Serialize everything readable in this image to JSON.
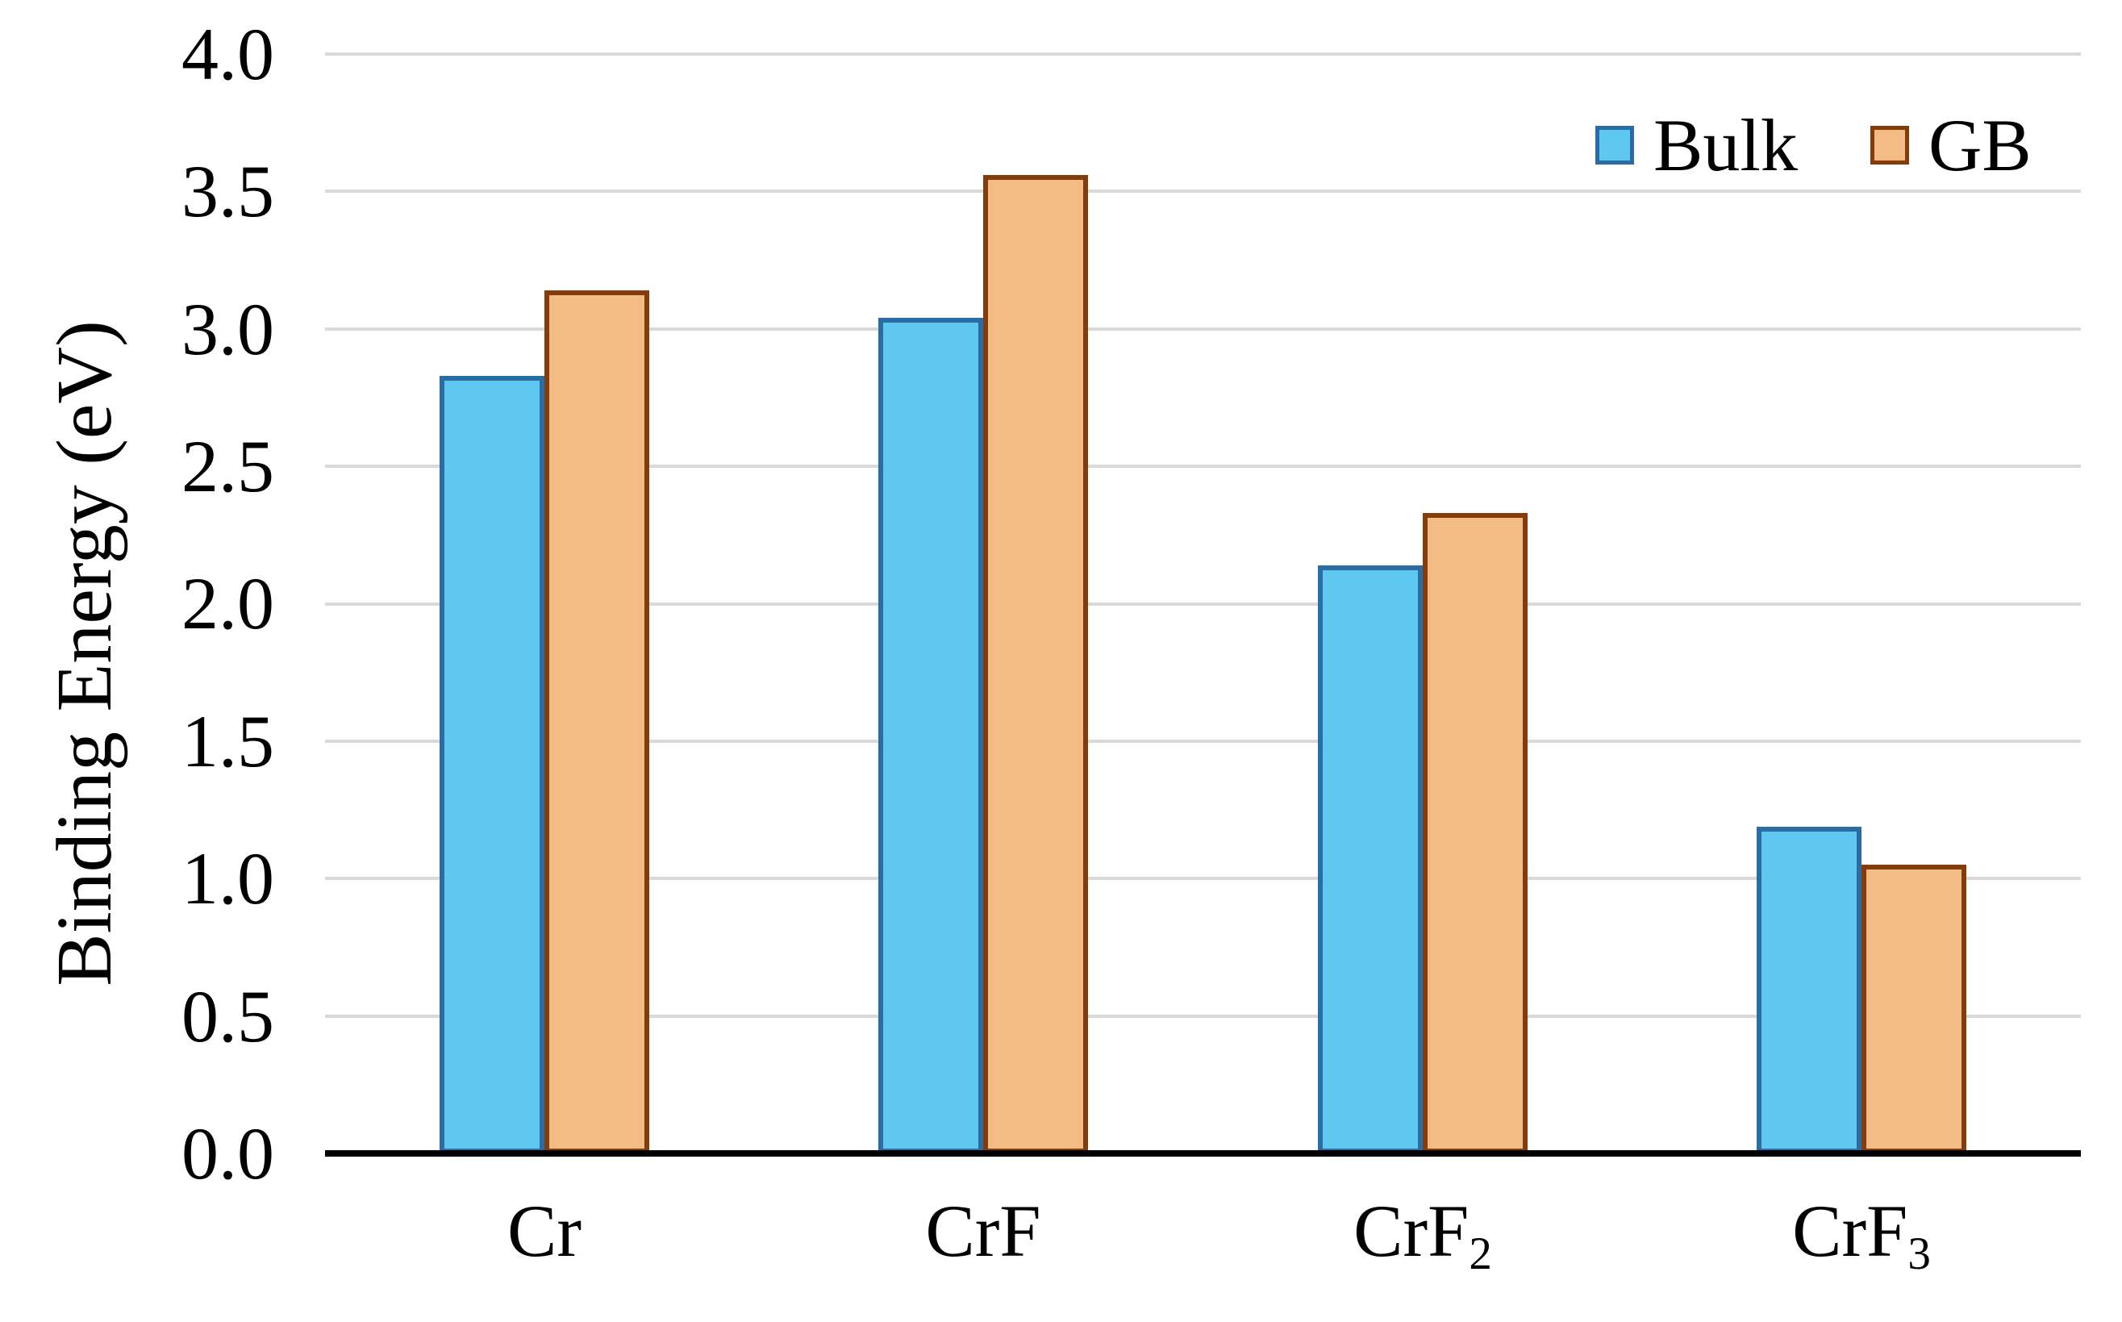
{
  "chart_data": {
    "type": "bar",
    "title": "",
    "xlabel": "",
    "ylabel": "Binding Energy (eV)",
    "ylim": [
      0,
      4
    ],
    "ytick_step": 0.5,
    "yticks": [
      "4.0",
      "3.5",
      "3.0",
      "2.5",
      "2.0",
      "1.5",
      "1.0",
      "0.5",
      "0.0"
    ],
    "categories": [
      {
        "base": "Cr",
        "sub": ""
      },
      {
        "base": "CrF",
        "sub": ""
      },
      {
        "base": "CrF",
        "sub": "2"
      },
      {
        "base": "CrF",
        "sub": "3"
      }
    ],
    "series": [
      {
        "name": "Bulk",
        "values": [
          2.83,
          3.04,
          2.14,
          1.19
        ],
        "fill": "#5EC8F0",
        "border": "#2B6CA3"
      },
      {
        "name": "GB",
        "values": [
          3.14,
          3.56,
          2.33,
          1.05
        ],
        "fill": "#F2BC84",
        "border": "#843C0C"
      }
    ],
    "grid": "horizontal",
    "gridline_color": "#D9D9D9",
    "axis_color": "#000000",
    "legend_position": "top-right"
  }
}
